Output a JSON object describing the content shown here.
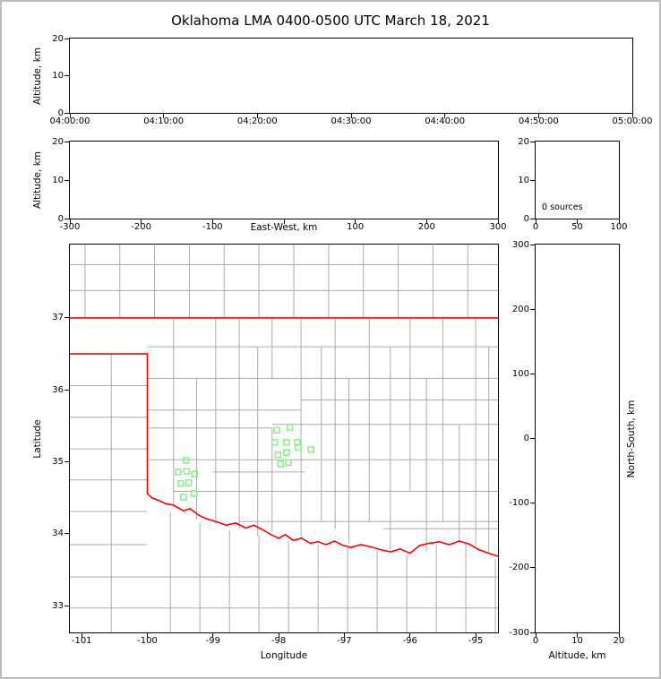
{
  "title": "Oklahoma LMA 0400-0500 UTC March 18, 2021",
  "colors": {
    "county_line": "#ababab",
    "state_border": "#ff0000",
    "station": "#90ee90",
    "axis": "#000000",
    "frame": "#bdbdbd"
  },
  "chart_data": [
    {
      "id": "time_height",
      "type": "scatter",
      "x": {
        "label": "",
        "min": 0,
        "max": 60,
        "ticks": [
          {
            "v": 0,
            "label": "04:00:00"
          },
          {
            "v": 10,
            "label": "04:10:00"
          },
          {
            "v": 20,
            "label": "04:20:00"
          },
          {
            "v": 30,
            "label": "04:30:00"
          },
          {
            "v": 40,
            "label": "04:40:00"
          },
          {
            "v": 50,
            "label": "04:50:00"
          },
          {
            "v": 60,
            "label": "05:00:00"
          }
        ]
      },
      "y": {
        "label": "Altitude, km",
        "min": 0,
        "max": 20,
        "ticks": [
          {
            "v": 0,
            "label": "0"
          },
          {
            "v": 10,
            "label": "10"
          },
          {
            "v": 20,
            "label": "20"
          }
        ]
      },
      "points": []
    },
    {
      "id": "ew_height",
      "type": "scatter",
      "x": {
        "label": "East-West, km",
        "label_inline_at": 0,
        "min": -300,
        "max": 300,
        "ticks": [
          {
            "v": -300,
            "label": "-300"
          },
          {
            "v": -200,
            "label": "-200"
          },
          {
            "v": -100,
            "label": "-100"
          },
          {
            "v": 0,
            "label": ""
          },
          {
            "v": 100,
            "label": "100"
          },
          {
            "v": 200,
            "label": "200"
          },
          {
            "v": 300,
            "label": "300"
          }
        ]
      },
      "y": {
        "label": "Altitude, km",
        "min": 0,
        "max": 20,
        "ticks": [
          {
            "v": 0,
            "label": "0"
          },
          {
            "v": 10,
            "label": "10"
          },
          {
            "v": 20,
            "label": "20"
          }
        ]
      },
      "points": []
    },
    {
      "id": "hist_alt",
      "type": "histogram",
      "annotation": "0 sources",
      "x": {
        "label": "",
        "min": 0,
        "max": 100,
        "ticks": [
          {
            "v": 0,
            "label": "0"
          },
          {
            "v": 50,
            "label": "50"
          },
          {
            "v": 100,
            "label": "100"
          }
        ]
      },
      "y": {
        "label": "",
        "min": 0,
        "max": 20,
        "ticks": [
          {
            "v": 0,
            "label": "0"
          },
          {
            "v": 10,
            "label": "10"
          },
          {
            "v": 20,
            "label": "20"
          }
        ]
      },
      "points": []
    },
    {
      "id": "map",
      "type": "map",
      "x": {
        "label": "Longitude",
        "min": -101.18,
        "max": -94.66,
        "ticks": [
          {
            "v": -101,
            "label": "-101"
          },
          {
            "v": -100,
            "label": "-100"
          },
          {
            "v": -99,
            "label": "-99"
          },
          {
            "v": -98,
            "label": "-98"
          },
          {
            "v": -97,
            "label": "-97"
          },
          {
            "v": -96,
            "label": "-96"
          },
          {
            "v": -95,
            "label": "-95"
          }
        ]
      },
      "y": {
        "label": "Latitude",
        "min": 32.63,
        "max": 38.02,
        "ticks": [
          {
            "v": 33,
            "label": "33"
          },
          {
            "v": 34,
            "label": "34"
          },
          {
            "v": 35,
            "label": "35"
          },
          {
            "v": 36,
            "label": "36"
          },
          {
            "v": 37,
            "label": "37"
          }
        ]
      },
      "stations": [
        [
          -98.03,
          35.44
        ],
        [
          -97.83,
          35.48
        ],
        [
          -98.06,
          35.27
        ],
        [
          -97.88,
          35.27
        ],
        [
          -97.72,
          35.27
        ],
        [
          -98.01,
          35.1
        ],
        [
          -97.88,
          35.13
        ],
        [
          -97.7,
          35.2
        ],
        [
          -97.51,
          35.17
        ],
        [
          -97.97,
          34.97
        ],
        [
          -97.85,
          34.99
        ],
        [
          -99.41,
          35.02
        ],
        [
          -99.53,
          34.86
        ],
        [
          -99.4,
          34.87
        ],
        [
          -99.28,
          34.83
        ],
        [
          -99.49,
          34.7
        ],
        [
          -99.37,
          34.71
        ],
        [
          -99.29,
          34.56
        ],
        [
          -99.45,
          34.51
        ]
      ],
      "state_border": [
        [
          [
            -101.18,
            37.0
          ],
          [
            -94.66,
            37.0
          ]
        ],
        [
          [
            -101.18,
            36.5
          ],
          [
            -100.0,
            36.5
          ],
          [
            -100.0,
            34.56
          ],
          [
            -99.93,
            34.5
          ],
          [
            -99.84,
            34.47
          ],
          [
            -99.72,
            34.42
          ],
          [
            -99.6,
            34.4
          ],
          [
            -99.45,
            34.32
          ],
          [
            -99.35,
            34.35
          ],
          [
            -99.22,
            34.26
          ],
          [
            -99.1,
            34.21
          ],
          [
            -98.95,
            34.17
          ],
          [
            -98.8,
            34.12
          ],
          [
            -98.65,
            34.15
          ],
          [
            -98.5,
            34.08
          ],
          [
            -98.38,
            34.12
          ],
          [
            -98.25,
            34.06
          ],
          [
            -98.12,
            33.99
          ],
          [
            -98.0,
            33.94
          ],
          [
            -97.9,
            33.99
          ],
          [
            -97.78,
            33.91
          ],
          [
            -97.65,
            33.94
          ],
          [
            -97.52,
            33.87
          ],
          [
            -97.4,
            33.89
          ],
          [
            -97.28,
            33.85
          ],
          [
            -97.15,
            33.9
          ],
          [
            -97.02,
            33.84
          ],
          [
            -96.9,
            33.81
          ],
          [
            -96.75,
            33.85
          ],
          [
            -96.6,
            33.82
          ],
          [
            -96.45,
            33.78
          ],
          [
            -96.3,
            33.75
          ],
          [
            -96.15,
            33.79
          ],
          [
            -96.0,
            33.73
          ],
          [
            -95.85,
            33.84
          ],
          [
            -95.7,
            33.87
          ],
          [
            -95.55,
            33.89
          ],
          [
            -95.4,
            33.85
          ],
          [
            -95.25,
            33.9
          ],
          [
            -95.1,
            33.86
          ],
          [
            -94.95,
            33.78
          ],
          [
            -94.8,
            33.73
          ],
          [
            -94.66,
            33.69
          ]
        ]
      ],
      "counties": [
        [
          [
            -100.95,
            37.0
          ],
          [
            -100.95,
            38.02
          ]
        ],
        [
          [
            -100.42,
            37.0
          ],
          [
            -100.42,
            38.02
          ]
        ],
        [
          [
            -99.89,
            37.0
          ],
          [
            -99.89,
            38.02
          ]
        ],
        [
          [
            -99.36,
            37.0
          ],
          [
            -99.36,
            38.02
          ]
        ],
        [
          [
            -98.83,
            37.0
          ],
          [
            -98.83,
            38.02
          ]
        ],
        [
          [
            -98.3,
            37.0
          ],
          [
            -98.3,
            38.02
          ]
        ],
        [
          [
            -97.77,
            37.0
          ],
          [
            -97.77,
            38.02
          ]
        ],
        [
          [
            -97.24,
            37.0
          ],
          [
            -97.24,
            38.02
          ]
        ],
        [
          [
            -96.71,
            37.0
          ],
          [
            -96.71,
            38.02
          ]
        ],
        [
          [
            -96.18,
            37.0
          ],
          [
            -96.18,
            38.02
          ]
        ],
        [
          [
            -95.65,
            37.0
          ],
          [
            -95.65,
            38.02
          ]
        ],
        [
          [
            -95.12,
            37.0
          ],
          [
            -95.12,
            38.02
          ]
        ],
        [
          [
            -101.18,
            37.38
          ],
          [
            -94.66,
            37.38
          ]
        ],
        [
          [
            -101.18,
            37.74
          ],
          [
            -94.66,
            37.74
          ]
        ],
        [
          [
            -101.18,
            36.06
          ],
          [
            -100.0,
            36.06
          ]
        ],
        [
          [
            -101.18,
            35.62
          ],
          [
            -100.0,
            35.62
          ]
        ],
        [
          [
            -101.18,
            35.18
          ],
          [
            -100.0,
            35.18
          ]
        ],
        [
          [
            -101.18,
            34.75
          ],
          [
            -100.0,
            34.75
          ]
        ],
        [
          [
            -101.18,
            34.31
          ],
          [
            -100.0,
            34.31
          ]
        ],
        [
          [
            -100.55,
            36.5
          ],
          [
            -100.55,
            32.63
          ]
        ],
        [
          [
            -101.18,
            33.85
          ],
          [
            -100.0,
            33.85
          ]
        ],
        [
          [
            -101.18,
            33.4
          ],
          [
            -94.66,
            33.4
          ]
        ],
        [
          [
            -101.18,
            32.97
          ],
          [
            -94.66,
            32.97
          ]
        ],
        [
          [
            -99.65,
            34.3
          ],
          [
            -99.65,
            32.63
          ]
        ],
        [
          [
            -99.2,
            34.15
          ],
          [
            -99.2,
            32.63
          ]
        ],
        [
          [
            -98.75,
            34.05
          ],
          [
            -98.75,
            32.63
          ]
        ],
        [
          [
            -98.3,
            33.98
          ],
          [
            -98.3,
            32.63
          ]
        ],
        [
          [
            -97.85,
            33.9
          ],
          [
            -97.85,
            32.63
          ]
        ],
        [
          [
            -97.4,
            33.85
          ],
          [
            -97.4,
            32.63
          ]
        ],
        [
          [
            -96.95,
            33.8
          ],
          [
            -96.95,
            32.63
          ]
        ],
        [
          [
            -96.5,
            33.78
          ],
          [
            -96.5,
            32.63
          ]
        ],
        [
          [
            -96.05,
            33.7
          ],
          [
            -96.05,
            32.63
          ]
        ],
        [
          [
            -95.6,
            33.85
          ],
          [
            -95.6,
            32.63
          ]
        ],
        [
          [
            -95.15,
            33.85
          ],
          [
            -95.15,
            32.63
          ]
        ],
        [
          [
            -94.7,
            33.65
          ],
          [
            -94.7,
            32.63
          ]
        ],
        [
          [
            -100.0,
            36.6
          ],
          [
            -94.66,
            36.6
          ]
        ],
        [
          [
            -100.0,
            36.16
          ],
          [
            -94.66,
            36.16
          ]
        ],
        [
          [
            -100.0,
            35.72
          ],
          [
            -97.66,
            35.72
          ]
        ],
        [
          [
            -97.66,
            35.86
          ],
          [
            -94.66,
            35.86
          ]
        ],
        [
          [
            -100.0,
            35.47
          ],
          [
            -98.1,
            35.47
          ]
        ],
        [
          [
            -98.1,
            35.52
          ],
          [
            -94.66,
            35.52
          ]
        ],
        [
          [
            -100.0,
            35.03
          ],
          [
            -94.66,
            35.03
          ]
        ],
        [
          [
            -99.0,
            34.86
          ],
          [
            -97.6,
            34.86
          ]
        ],
        [
          [
            -99.6,
            34.59
          ],
          [
            -94.66,
            34.59
          ]
        ],
        [
          [
            -98.6,
            34.17
          ],
          [
            -94.66,
            34.17
          ]
        ],
        [
          [
            -96.4,
            34.07
          ],
          [
            -94.66,
            34.07
          ]
        ],
        [
          [
            -99.6,
            37.0
          ],
          [
            -99.6,
            34.42
          ]
        ],
        [
          [
            -99.25,
            36.16
          ],
          [
            -99.25,
            34.2
          ]
        ],
        [
          [
            -98.96,
            37.0
          ],
          [
            -98.96,
            34.2
          ]
        ],
        [
          [
            -98.6,
            37.0
          ],
          [
            -98.6,
            34.08
          ]
        ],
        [
          [
            -98.32,
            36.6
          ],
          [
            -98.32,
            33.97
          ]
        ],
        [
          [
            -98.1,
            37.0
          ],
          [
            -98.1,
            36.16
          ]
        ],
        [
          [
            -98.1,
            35.47
          ],
          [
            -98.1,
            34.03
          ]
        ],
        [
          [
            -97.66,
            37.0
          ],
          [
            -97.66,
            33.93
          ]
        ],
        [
          [
            -97.35,
            36.6
          ],
          [
            -97.35,
            34.17
          ]
        ],
        [
          [
            -97.14,
            37.0
          ],
          [
            -97.14,
            34.07
          ]
        ],
        [
          [
            -96.93,
            36.16
          ],
          [
            -96.93,
            33.86
          ]
        ],
        [
          [
            -96.62,
            37.0
          ],
          [
            -96.62,
            34.17
          ]
        ],
        [
          [
            -96.3,
            36.6
          ],
          [
            -96.3,
            33.77
          ]
        ],
        [
          [
            -96.0,
            37.0
          ],
          [
            -96.0,
            34.59
          ]
        ],
        [
          [
            -95.75,
            36.16
          ],
          [
            -95.75,
            33.76
          ]
        ],
        [
          [
            -95.5,
            37.0
          ],
          [
            -95.5,
            34.17
          ]
        ],
        [
          [
            -95.25,
            35.52
          ],
          [
            -95.25,
            33.9
          ]
        ],
        [
          [
            -95.0,
            37.0
          ],
          [
            -95.0,
            33.84
          ]
        ],
        [
          [
            -94.8,
            36.6
          ],
          [
            -94.8,
            33.72
          ]
        ]
      ]
    },
    {
      "id": "ns_alt",
      "type": "scatter",
      "x": {
        "label": "Altitude, km",
        "min": 0,
        "max": 20,
        "ticks": [
          {
            "v": 0,
            "label": "0"
          },
          {
            "v": 10,
            "label": "10"
          },
          {
            "v": 20,
            "label": "20"
          }
        ]
      },
      "y": {
        "label": "North-South, km",
        "label_side": "right",
        "min": -300,
        "max": 300,
        "ticks": [
          {
            "v": -300,
            "label": "-300"
          },
          {
            "v": -200,
            "label": "-200"
          },
          {
            "v": -100,
            "label": "-100"
          },
          {
            "v": 0,
            "label": "0"
          },
          {
            "v": 100,
            "label": "100"
          },
          {
            "v": 200,
            "label": "200"
          },
          {
            "v": 300,
            "label": "300"
          }
        ]
      },
      "points": []
    }
  ]
}
